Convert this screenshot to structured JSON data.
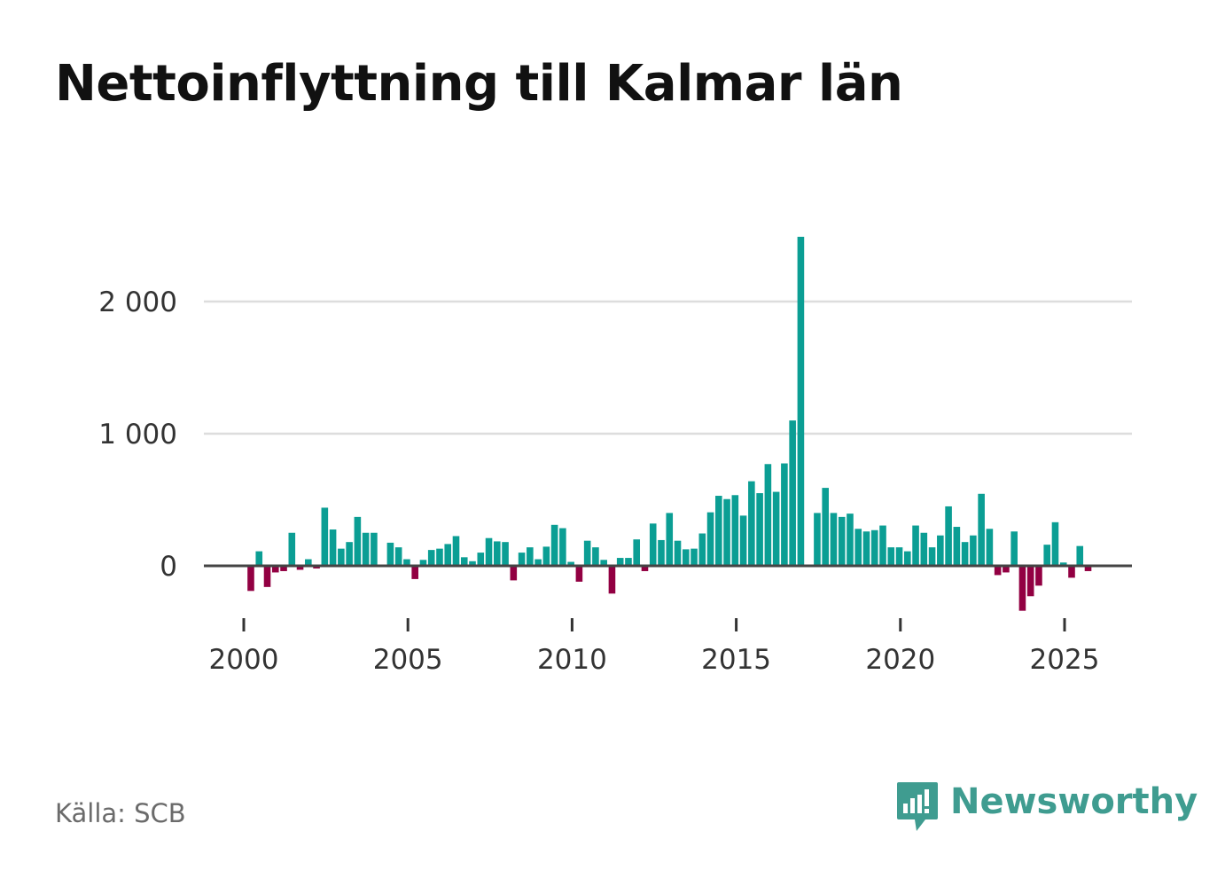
{
  "chart_data": {
    "type": "bar",
    "title": "Nettoinflyttning till Kalmar län",
    "xlabel": "",
    "ylabel": "",
    "ylim": [
      -400,
      2550
    ],
    "xlim": [
      1999.75,
      2027.0
    ],
    "yticks": [
      0,
      1000,
      2000
    ],
    "ytick_labels": [
      "0",
      "1 000",
      "2 000"
    ],
    "xticks": [
      2000,
      2005,
      2010,
      2015,
      2020,
      2025
    ],
    "xtick_labels": [
      "2000",
      "2005",
      "2010",
      "2015",
      "2020",
      "2025"
    ],
    "grid": true,
    "colors": {
      "positive": "#0b9e94",
      "negative": "#920042"
    },
    "start_year": 2000,
    "periods_per_year": 4,
    "values": [
      -190,
      110,
      -160,
      -50,
      -40,
      250,
      -30,
      50,
      -20,
      440,
      275,
      130,
      180,
      370,
      250,
      250,
      0,
      175,
      140,
      50,
      -100,
      45,
      120,
      130,
      165,
      225,
      65,
      35,
      100,
      210,
      185,
      180,
      -110,
      100,
      140,
      50,
      145,
      310,
      285,
      30,
      -120,
      190,
      140,
      45,
      -210,
      60,
      60,
      200,
      -40,
      320,
      195,
      400,
      190,
      125,
      130,
      245,
      405,
      530,
      505,
      535,
      380,
      640,
      550,
      770,
      560,
      775,
      1100,
      2490,
      0,
      400,
      590,
      400,
      370,
      395,
      280,
      260,
      270,
      305,
      140,
      140,
      110,
      305,
      250,
      140,
      230,
      450,
      295,
      180,
      230,
      545,
      280,
      -70,
      -50,
      260,
      -340,
      -230,
      -150,
      160,
      330,
      25,
      -90,
      150,
      -40
    ]
  },
  "source": {
    "label": "Källa: SCB"
  },
  "brand": {
    "name": "Newsworthy",
    "color": "#3f9c90",
    "icon": "bar-chart-speech-bubble-icon"
  }
}
